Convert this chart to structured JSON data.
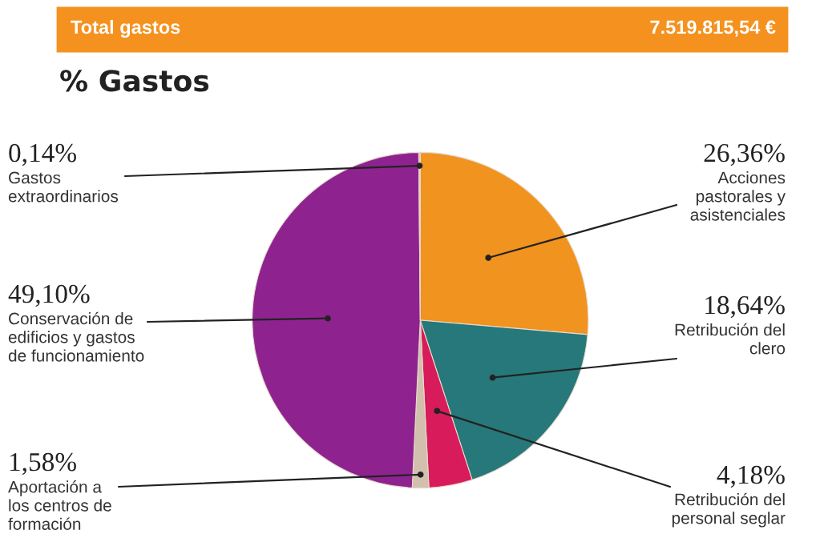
{
  "chart_data": {
    "type": "pie",
    "title": "% Gastos",
    "annotations": [
      "Total gastos",
      "7.519.815,54 €"
    ],
    "categories": [
      "Acciones\npastorales y\nasistenciales",
      "Retribución del\nclero",
      "Retribución del\npersonal seglar",
      "Aportación a\nlos centros de\nformación",
      "Conservación de\nedificios y gastos\nde funcionamiento",
      "Gastos\nextraordinarios"
    ],
    "values": [
      26.36,
      18.64,
      4.18,
      1.58,
      49.1,
      0.14
    ],
    "value_labels": [
      "26,36%",
      "18,64%",
      "4,18%",
      "1,58%",
      "49,10%",
      "0,14%"
    ],
    "colors": [
      "#f0931f",
      "#27787a",
      "#d81b5a",
      "#d3bfae",
      "#8e2390",
      "#dcc8ba"
    ]
  }
}
